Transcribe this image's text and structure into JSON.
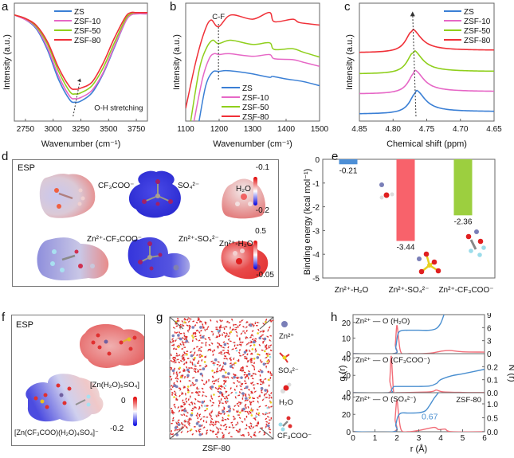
{
  "figure": {
    "panel_labels": [
      "a",
      "b",
      "c",
      "d",
      "e",
      "f",
      "g",
      "h"
    ]
  },
  "chart_data": [
    {
      "id": "a",
      "type": "line",
      "title": "",
      "xlabel": "Wavenumber (cm⁻¹)",
      "ylabel": "Intensity (a.u.)",
      "xlim": [
        2650,
        3850
      ],
      "xticks": [
        2750,
        3000,
        3250,
        3500,
        3750
      ],
      "legend": [
        "ZS",
        "ZSF-10",
        "ZSF-50",
        "ZSF-80"
      ],
      "legend_position": "top-center",
      "annotation": "O-H stretching",
      "series": [
        {
          "name": "ZS",
          "color": "#3a7fd5",
          "x": [
            2650,
            2750,
            2850,
            2950,
            3050,
            3150,
            3200,
            3250,
            3350,
            3450,
            3550,
            3650,
            3700,
            3750,
            3850
          ],
          "y": [
            0.9,
            0.86,
            0.78,
            0.6,
            0.35,
            0.18,
            0.16,
            0.17,
            0.24,
            0.4,
            0.62,
            0.84,
            0.9,
            0.91,
            0.91
          ]
        },
        {
          "name": "ZSF-10",
          "color": "#e667c6",
          "x": [
            2650,
            2750,
            2850,
            2950,
            3050,
            3150,
            3200,
            3250,
            3350,
            3450,
            3550,
            3650,
            3700,
            3750,
            3850
          ],
          "y": [
            0.9,
            0.86,
            0.79,
            0.62,
            0.38,
            0.21,
            0.19,
            0.2,
            0.26,
            0.41,
            0.63,
            0.84,
            0.9,
            0.91,
            0.91
          ]
        },
        {
          "name": "ZSF-50",
          "color": "#8fcf1c",
          "x": [
            2650,
            2750,
            2850,
            2950,
            3050,
            3150,
            3200,
            3250,
            3350,
            3450,
            3550,
            3650,
            3700,
            3750,
            3850
          ],
          "y": [
            0.9,
            0.87,
            0.8,
            0.65,
            0.42,
            0.25,
            0.23,
            0.24,
            0.3,
            0.45,
            0.66,
            0.86,
            0.91,
            0.92,
            0.92
          ]
        },
        {
          "name": "ZSF-80",
          "color": "#f03038",
          "x": [
            2650,
            2750,
            2850,
            2950,
            3050,
            3150,
            3200,
            3250,
            3350,
            3450,
            3550,
            3650,
            3700,
            3750,
            3850
          ],
          "y": [
            0.9,
            0.87,
            0.81,
            0.67,
            0.45,
            0.29,
            0.27,
            0.28,
            0.33,
            0.49,
            0.7,
            0.88,
            0.92,
            0.92,
            0.92
          ]
        }
      ]
    },
    {
      "id": "b",
      "type": "line",
      "xlabel": "Wavenumber (cm⁻¹)",
      "ylabel": "Intensity (a.u.)",
      "xlim": [
        1100,
        1500
      ],
      "xticks": [
        1100,
        1200,
        1300,
        1400,
        1500
      ],
      "legend": [
        "ZS",
        "ZSF-10",
        "ZSF-50",
        "ZSF-80"
      ],
      "legend_position": "bottom-center",
      "annotation": "C-F",
      "annotation_x": 1198,
      "series": [
        {
          "name": "ZS",
          "color": "#3a7fd5",
          "x": [
            1140,
            1160,
            1180,
            1200,
            1220,
            1250,
            1300,
            1350,
            1360,
            1400,
            1450,
            1500
          ],
          "y": [
            0.0,
            0.42,
            0.58,
            0.59,
            0.6,
            0.59,
            0.56,
            0.52,
            0.53,
            0.5,
            0.47,
            0.42
          ]
        },
        {
          "name": "ZSF-10",
          "color": "#e667c6",
          "x": [
            1125,
            1150,
            1170,
            1185,
            1200,
            1230,
            1300,
            1350,
            1365,
            1420,
            1450,
            1500
          ],
          "y": [
            0.0,
            0.5,
            0.74,
            0.8,
            0.79,
            0.8,
            0.77,
            0.79,
            0.74,
            0.73,
            0.7,
            0.65
          ]
        },
        {
          "name": "ZSF-50",
          "color": "#8fcf1c",
          "x": [
            1115,
            1140,
            1160,
            1180,
            1198,
            1235,
            1300,
            1350,
            1365,
            1420,
            1450,
            1500
          ],
          "y": [
            0.0,
            0.6,
            0.85,
            0.96,
            0.92,
            0.96,
            0.91,
            0.93,
            0.85,
            0.86,
            0.82,
            0.76
          ]
        },
        {
          "name": "ZSF-80",
          "color": "#f03038",
          "x": [
            1100,
            1130,
            1155,
            1175,
            1198,
            1235,
            1300,
            1350,
            1365,
            1420,
            1440,
            1500
          ],
          "y": [
            0.15,
            0.7,
            1.05,
            1.2,
            1.12,
            1.26,
            1.21,
            1.29,
            1.18,
            1.21,
            1.17,
            1.14
          ]
        }
      ]
    },
    {
      "id": "c",
      "type": "line",
      "xlabel": "Chemical shift (ppm)",
      "ylabel": "Intensity (a.u.)",
      "xlim": [
        4.85,
        4.65
      ],
      "xticks": [
        4.85,
        4.8,
        4.75,
        4.7,
        4.65
      ],
      "legend": [
        "ZS",
        "ZSF-10",
        "ZSF-50",
        "ZSF-80"
      ],
      "legend_position": "top-right",
      "series": [
        {
          "name": "ZS",
          "color": "#3a7fd5",
          "peak": 4.766,
          "offset": 0.0
        },
        {
          "name": "ZSF-10",
          "color": "#e667c6",
          "peak": 4.768,
          "offset": 0.17
        },
        {
          "name": "ZSF-50",
          "color": "#8fcf1c",
          "peak": 4.77,
          "offset": 0.34
        },
        {
          "name": "ZSF-80",
          "color": "#f03038",
          "peak": 4.772,
          "offset": 0.52
        }
      ]
    },
    {
      "id": "e",
      "type": "bar",
      "xlabel": "",
      "ylabel": "Binding energy (kcal mol⁻¹)",
      "ylim": [
        -5,
        0
      ],
      "yticks": [
        0,
        -1,
        -2,
        -3,
        -4,
        -5
      ],
      "categories": [
        "Zn²⁺-H₂O",
        "Zn²⁺-SO₄²⁻",
        "Zn²⁺-CF₃COO⁻"
      ],
      "values": [
        -0.21,
        -3.44,
        -2.36
      ],
      "labels": [
        "-0.21",
        "-3.44",
        "-2.36"
      ],
      "colors": [
        "#4d8fd6",
        "#f8626b",
        "#9ccf3f"
      ]
    },
    {
      "id": "h",
      "type": "line",
      "xlabel": "r (Å)",
      "ylabel_left": "g (r)",
      "ylabel_right": "N (r)",
      "xlim": [
        0,
        6
      ],
      "xticks": [
        0,
        1,
        2,
        3,
        4,
        5,
        6
      ],
      "annotation": "ZSF-80",
      "subplots": [
        {
          "title": "Zn²⁺ — O (H₂O)",
          "ylim_left": [
            0,
            25
          ],
          "yticks_left": [
            0,
            10,
            20
          ],
          "ylim_right": [
            0,
            9
          ],
          "yticks_right": [
            0,
            3,
            6,
            9
          ],
          "g_r": {
            "color": "#f26d78",
            "x": [
              0,
              1.85,
              1.93,
              2.0,
              2.08,
              2.2,
              2.6,
              3.5,
              4.0,
              4.4,
              5.0,
              6.0
            ],
            "y": [
              0,
              0,
              6,
              18,
              10,
              0.5,
              0,
              0.3,
              1.5,
              2.0,
              1.2,
              1.0
            ]
          },
          "N_r": {
            "color": "#4a8fd0",
            "x": [
              0,
              1.85,
              1.95,
              2.05,
              2.2,
              2.5,
              3.0,
              3.5,
              3.8,
              4.0,
              4.15
            ],
            "y": [
              0,
              0,
              1.5,
              4.5,
              5.3,
              5.4,
              5.4,
              5.4,
              5.8,
              7.0,
              9.0
            ]
          }
        },
        {
          "title": "Zn²⁺ — O (CF₃COO⁻)",
          "ylim_left": [
            0,
            45
          ],
          "yticks_left": [
            0,
            20,
            40
          ],
          "ylim_right": [
            0,
            0.3
          ],
          "yticks_right": [
            0.0,
            0.1,
            0.2
          ],
          "g_r": {
            "color": "#f26d78",
            "x": [
              0,
              1.62,
              1.68,
              1.74,
              1.8,
              1.86,
              2.0,
              3.5,
              3.8,
              4.1,
              5.0,
              6.0
            ],
            "y": [
              0,
              0,
              15,
              42,
              20,
              0,
              0,
              1,
              3,
              1,
              0.3,
              0.2
            ]
          },
          "N_r": {
            "color": "#4a8fd0",
            "x": [
              0,
              1.65,
              1.75,
              1.85,
              2.0,
              3.0,
              3.5,
              3.8,
              4.0,
              4.5,
              5.0,
              6.0
            ],
            "y": [
              0,
              0,
              0.02,
              0.045,
              0.048,
              0.048,
              0.052,
              0.07,
              0.1,
              0.13,
              0.145,
              0.18
            ]
          }
        },
        {
          "title": "Zn²⁺ — O (SO₄²⁻)",
          "ylim_left": [
            0,
            45
          ],
          "yticks_left": [
            0,
            20,
            40
          ],
          "ylim_right": [
            0,
            1.4
          ],
          "yticks_right": [
            0.0,
            0.5,
            1.0
          ],
          "label": "0.67",
          "g_r": {
            "color": "#f26d78",
            "x": [
              0,
              1.85,
              1.92,
              2.0,
              2.08,
              2.2,
              2.5,
              3.0,
              3.7,
              3.9,
              4.2,
              4.5,
              6.0
            ],
            "y": [
              0,
              0,
              15,
              37,
              20,
              2,
              0,
              1.5,
              5,
              2.5,
              3,
              0,
              0
            ]
          },
          "N_r": {
            "color": "#4a8fd0",
            "x": [
              0,
              1.85,
              1.95,
              2.05,
              2.2,
              2.5,
              3.0,
              3.3,
              3.5,
              3.7,
              3.9
            ],
            "y": [
              0,
              0,
              0.25,
              0.55,
              0.67,
              0.67,
              0.68,
              0.75,
              0.95,
              1.2,
              1.4
            ]
          }
        }
      ]
    }
  ],
  "panel_d": {
    "title": "ESP",
    "molecules": [
      {
        "label": "CF₃COO⁻"
      },
      {
        "label": "SO₄²⁻"
      },
      {
        "label": "H₂O"
      },
      {
        "label": "Zn²⁺-CF₃COO⁻"
      },
      {
        "label": "Zn²⁺-SO₄²⁻"
      },
      {
        "label": "Zn²⁺-H₂O"
      }
    ],
    "colorbar_top": {
      "max": "-0.1",
      "min": "-0.2"
    },
    "colorbar_bottom": {
      "max": "0.5",
      "min": "-0.05"
    }
  },
  "panel_f": {
    "title": "ESP",
    "molecules": [
      {
        "label": "[Zn(H₂O)₅SO₄]"
      },
      {
        "label": "[Zn(CF₃COO)(H₂O)₄SO₄]⁻"
      }
    ],
    "colorbar": {
      "max": "0",
      "min": "-0.2"
    }
  },
  "panel_g": {
    "caption": "ZSF-80",
    "legend": [
      {
        "label": "Zn²⁺",
        "icon": "zn-ion-icon"
      },
      {
        "label": "SO₄²⁻",
        "icon": "sulfate-icon"
      },
      {
        "label": "H₂O",
        "icon": "water-icon"
      },
      {
        "label": "CF₃COO⁻",
        "icon": "trifluoroacetate-icon"
      }
    ]
  }
}
